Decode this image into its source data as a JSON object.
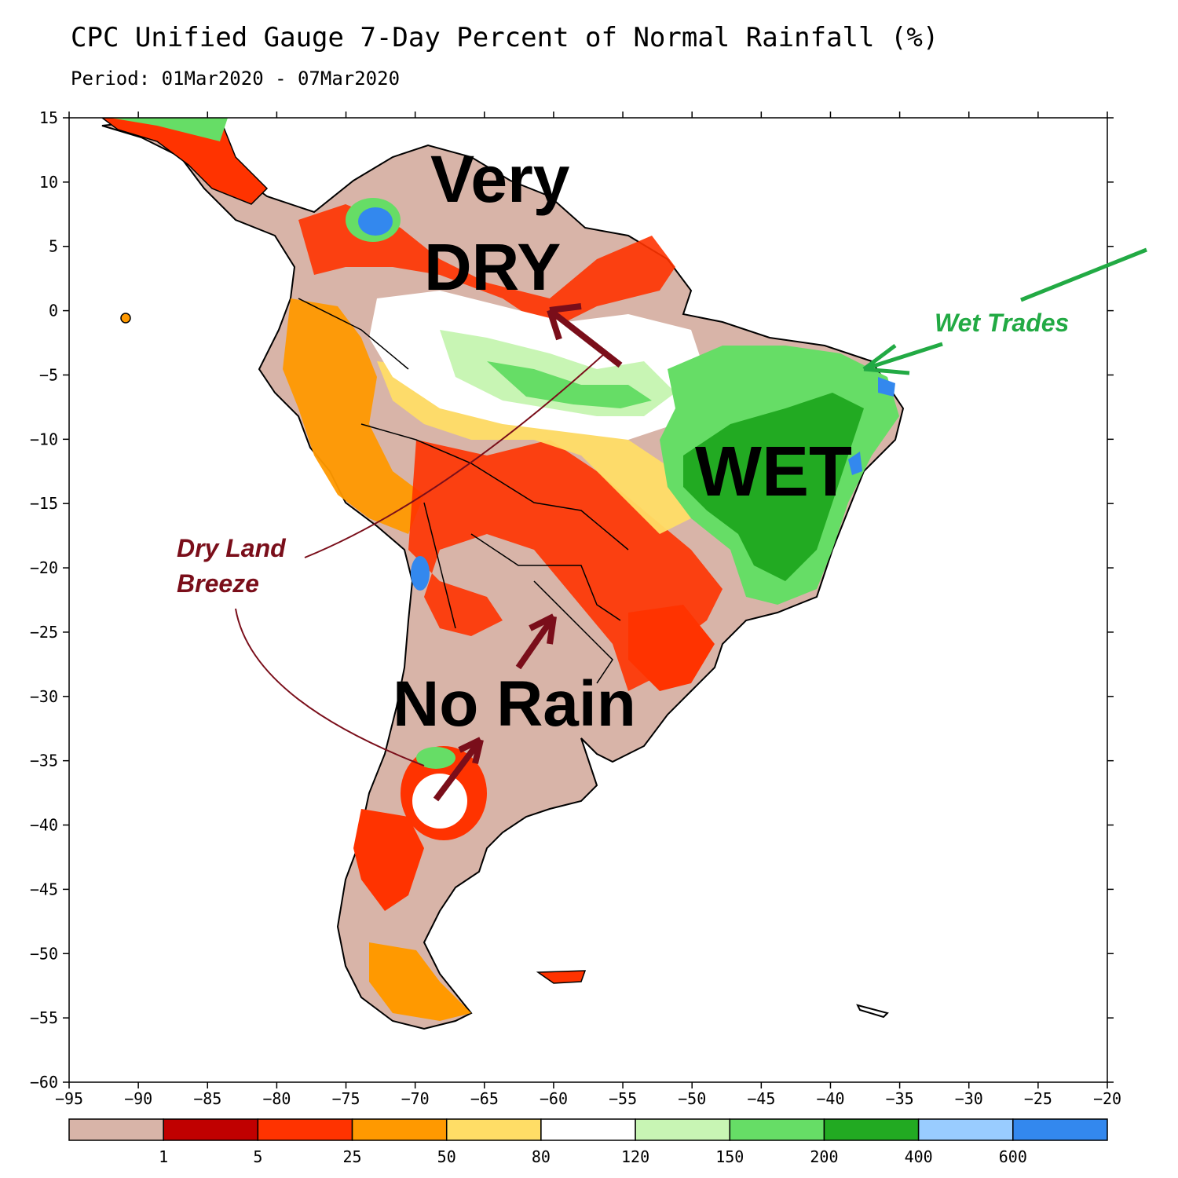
{
  "title": "CPC Unified Gauge 7-Day Percent of Normal Rainfall (%)",
  "subtitle": "Period: 01Mar2020 - 07Mar2020",
  "map": {
    "lon_range": [
      -95,
      -20
    ],
    "lat_range": [
      -60,
      15
    ],
    "lat_ticks": [
      "15",
      "10",
      "5",
      "0",
      "-5",
      "-10",
      "-15",
      "-20",
      "-25",
      "-30",
      "-35",
      "-40",
      "-45",
      "-50",
      "-55",
      "-60"
    ],
    "lon_ticks": [
      "-95",
      "-90",
      "-85",
      "-80",
      "-75",
      "-70",
      "-65",
      "-60",
      "-55",
      "-50",
      "-45",
      "-40",
      "-35",
      "-30",
      "-25",
      "-20"
    ],
    "region": "South America"
  },
  "legend": {
    "boundaries": [
      "1",
      "5",
      "25",
      "50",
      "80",
      "120",
      "150",
      "200",
      "400",
      "600"
    ],
    "colors": [
      "#d8b4a8",
      "#c00000",
      "#ff3300",
      "#ff9900",
      "#ffdd66",
      "#ffffff",
      "#c8f5b4",
      "#66dd66",
      "#22aa22",
      "#99ccff",
      "#3388ee"
    ]
  },
  "annotations": {
    "very": "Very",
    "dry": "DRY",
    "wet": "WET",
    "no_rain": "No Rain",
    "dry_land_breeze_1": "Dry Land",
    "dry_land_breeze_2": "Breeze",
    "wet_trades": "Wet Trades",
    "dry_color": "#7a0e1a",
    "wet_trades_color": "#22aa44"
  }
}
